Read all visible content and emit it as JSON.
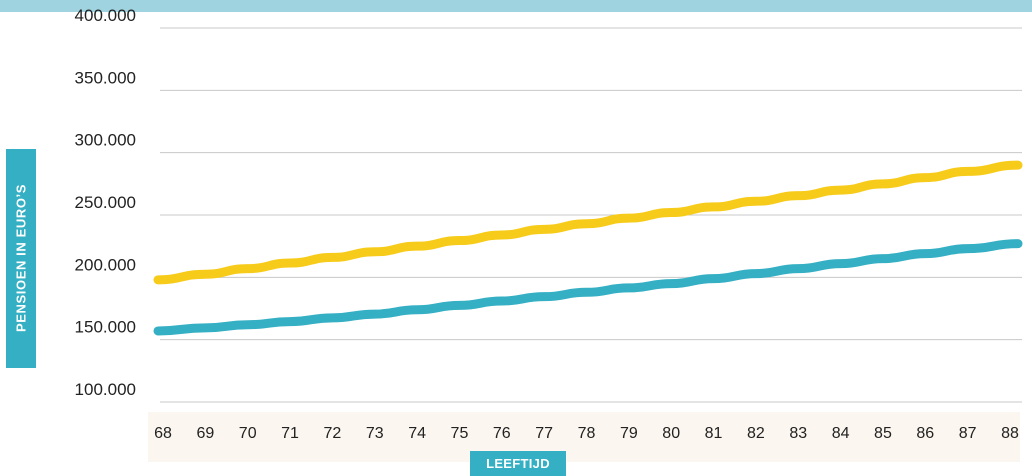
{
  "chart_data": {
    "type": "line",
    "title": "",
    "xlabel": "LEEFTIJD",
    "ylabel": "PENSIOEN IN EURO’S",
    "x": [
      68,
      69,
      70,
      71,
      72,
      73,
      74,
      75,
      76,
      77,
      78,
      79,
      80,
      81,
      82,
      83,
      84,
      85,
      86,
      87,
      88
    ],
    "ylim": [
      100000,
      400000
    ],
    "yticks": [
      100000,
      150000,
      200000,
      250000,
      300000,
      350000,
      400000
    ],
    "ytick_labels": [
      "100.000",
      "150.000",
      "200.000",
      "250.000",
      "300.000",
      "350.000",
      "400.000"
    ],
    "xtick_labels": [
      "68",
      "69",
      "70",
      "71",
      "72",
      "73",
      "74",
      "75",
      "76",
      "77",
      "78",
      "79",
      "80",
      "81",
      "82",
      "83",
      "84",
      "85",
      "86",
      "87",
      "88"
    ],
    "grid": true,
    "legend": "none",
    "series": [
      {
        "color": "#f7cb1a",
        "values": [
          198000,
          202500,
          207000,
          211500,
          216000,
          220500,
          225000,
          229500,
          234000,
          238500,
          243000,
          247500,
          252000,
          256500,
          261000,
          265500,
          270000,
          275000,
          280000,
          285000,
          290000
        ]
      },
      {
        "color": "#34afc3",
        "values": [
          157000,
          159500,
          162000,
          164500,
          167500,
          170500,
          174000,
          177500,
          181000,
          184500,
          188000,
          191500,
          195000,
          199000,
          203000,
          207000,
          211000,
          215000,
          219000,
          223000,
          227000
        ]
      }
    ]
  }
}
